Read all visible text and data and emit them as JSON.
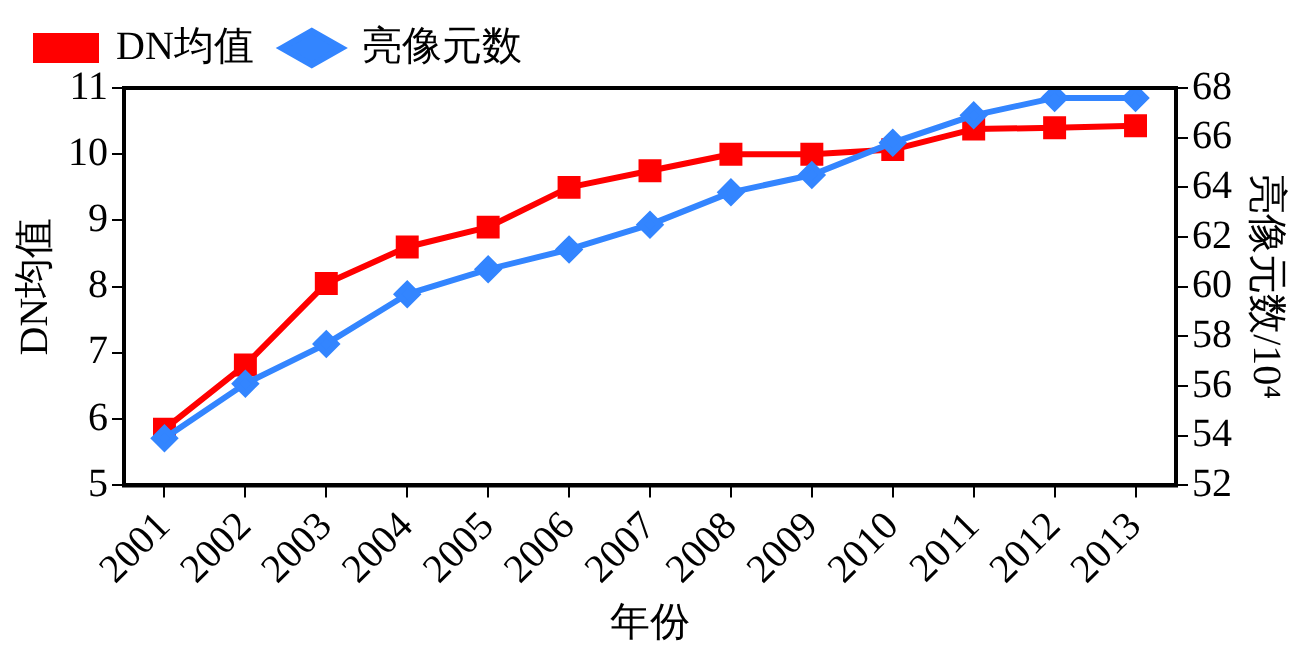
{
  "chart_data": {
    "type": "line",
    "xlabel": "年份",
    "ylabel": "DN均值",
    "y2label": "亮像元数/10⁴",
    "categories": [
      "2001",
      "2002",
      "2003",
      "2004",
      "2005",
      "2006",
      "2007",
      "2008",
      "2009",
      "2010",
      "2011",
      "2012",
      "2013"
    ],
    "series": [
      {
        "name": "DN均值",
        "color": "#ff0000",
        "marker": "square",
        "values": [
          5.85,
          6.82,
          8.05,
          8.6,
          8.9,
          9.5,
          9.75,
          10.0,
          10.0,
          10.07,
          10.38,
          10.4,
          10.43
        ]
      },
      {
        "name": "亮像元数",
        "color": "#3385ff",
        "marker": "diamond",
        "axis": "y2",
        "values": [
          53.9,
          56.1,
          57.7,
          59.7,
          60.7,
          61.5,
          62.5,
          63.8,
          64.5,
          65.8,
          66.9,
          67.6,
          67.6
        ]
      }
    ],
    "ylim": [
      5,
      11
    ],
    "yticks": [
      5,
      6,
      7,
      8,
      9,
      10,
      11
    ],
    "y2lim": [
      52,
      68
    ],
    "y2ticks": [
      52,
      54,
      56,
      58,
      60,
      62,
      64,
      66,
      68
    ],
    "grid": false,
    "legend": "top left",
    "line_style": "solid"
  }
}
